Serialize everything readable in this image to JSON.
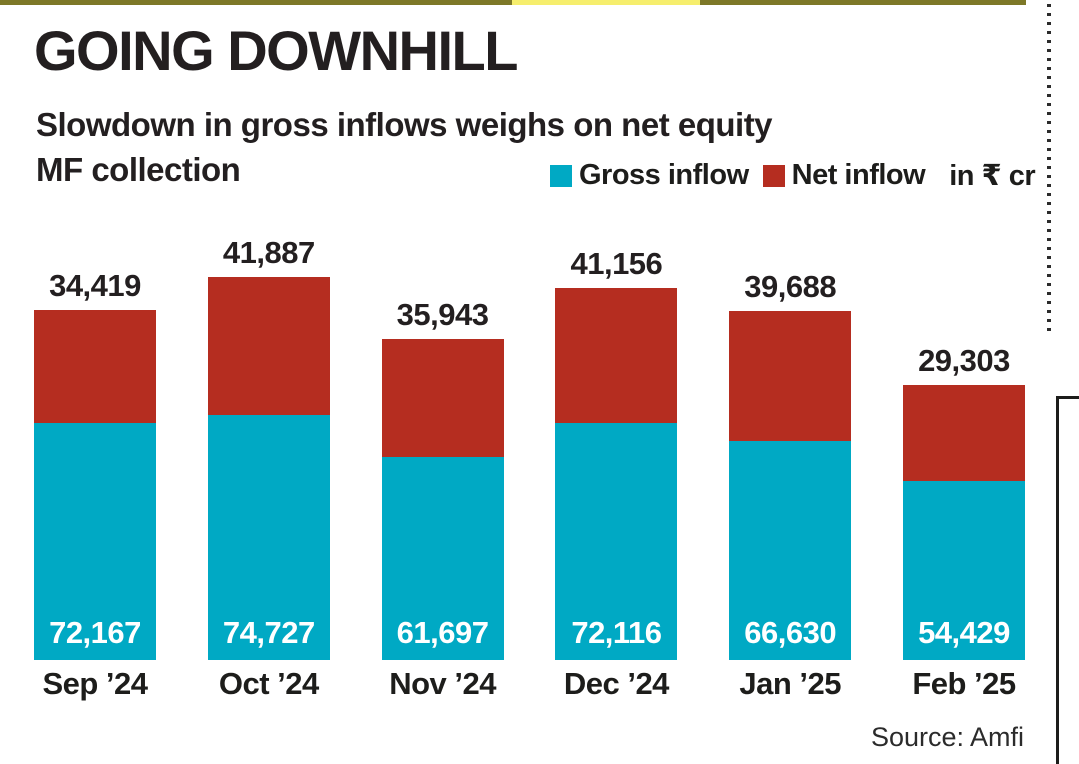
{
  "page_rules": {
    "top_rule_color": "#7d7828",
    "top_rule_highlight_color": "#f6ee6d",
    "frame_color": "#1d1d1b"
  },
  "header": {
    "title": "GOING DOWNHILL",
    "subtitle_line1": "Slowdown in gross inflows weighs on net equity",
    "subtitle_line2": "MF collection"
  },
  "legend": {
    "items": [
      {
        "label": "Gross inflow",
        "color": "#00a9c4"
      },
      {
        "label": "Net inflow",
        "color": "#b52d20"
      }
    ],
    "unit": "in ₹ cr"
  },
  "chart_data": {
    "type": "bar",
    "stacked": true,
    "orientation": "vertical",
    "grid": false,
    "legend_position": "top-right",
    "categories": [
      "Sep ’24",
      "Oct ’24",
      "Nov ’24",
      "Dec ’24",
      "Jan ’25",
      "Feb ’25"
    ],
    "series": [
      {
        "name": "Gross inflow",
        "color": "#00a9c4",
        "values": [
          72167,
          74727,
          61697,
          72116,
          66630,
          54429
        ],
        "labels": [
          "72,167",
          "74,727",
          "61,697",
          "72,116",
          "66,630",
          "54,429"
        ],
        "label_position": "inside-bottom-white"
      },
      {
        "name": "Net inflow",
        "color": "#b52d20",
        "values": [
          34419,
          41887,
          35943,
          41156,
          39688,
          29303
        ],
        "labels": [
          "34,419",
          "41,887",
          "35,943",
          "41,156",
          "39,688",
          "29,303"
        ],
        "label_position": "above-bar-black"
      }
    ],
    "unit": "₹ cr",
    "title": "GOING DOWNHILL",
    "subtitle": "Slowdown in gross inflows weighs on net equity MF collection"
  },
  "footer": {
    "source": "Source: Amfi"
  }
}
